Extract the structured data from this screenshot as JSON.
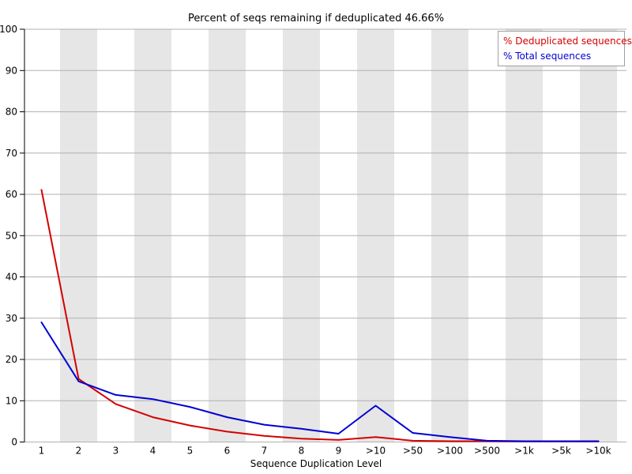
{
  "chart_data": {
    "type": "line",
    "title": "Percent of seqs remaining if deduplicated 46.66%",
    "xlabel": "Sequence Duplication Level",
    "ylabel": "",
    "ylim": [
      0,
      100
    ],
    "yticks": [
      0,
      10,
      20,
      30,
      40,
      50,
      60,
      70,
      80,
      90,
      100
    ],
    "categories": [
      "1",
      "2",
      "3",
      "4",
      "5",
      "6",
      "7",
      "8",
      "9",
      ">10",
      ">50",
      ">100",
      ">500",
      ">1k",
      ">5k",
      ">10k"
    ],
    "series": [
      {
        "name": "% Deduplicated sequences",
        "color": "#d40000",
        "values": [
          61.1,
          15.3,
          9.2,
          6.0,
          4.0,
          2.5,
          1.5,
          0.8,
          0.5,
          1.2,
          0.3,
          0.2,
          0.2,
          0.15,
          0.15,
          0.15
        ]
      },
      {
        "name": "% Total sequences",
        "color": "#0000d4",
        "values": [
          29.0,
          14.7,
          11.4,
          10.4,
          8.5,
          6.0,
          4.2,
          3.2,
          2.0,
          8.8,
          2.2,
          1.2,
          0.3,
          0.2,
          0.2,
          0.2
        ]
      }
    ],
    "legend_position": "top-right",
    "grid": true,
    "colors": {
      "background": "#ffffff",
      "band": "#e6e6e6",
      "gridline": "#b0b0b0",
      "axis": "#000000",
      "tick_label": "#000000",
      "legend_border": "#a0a0a0"
    }
  }
}
